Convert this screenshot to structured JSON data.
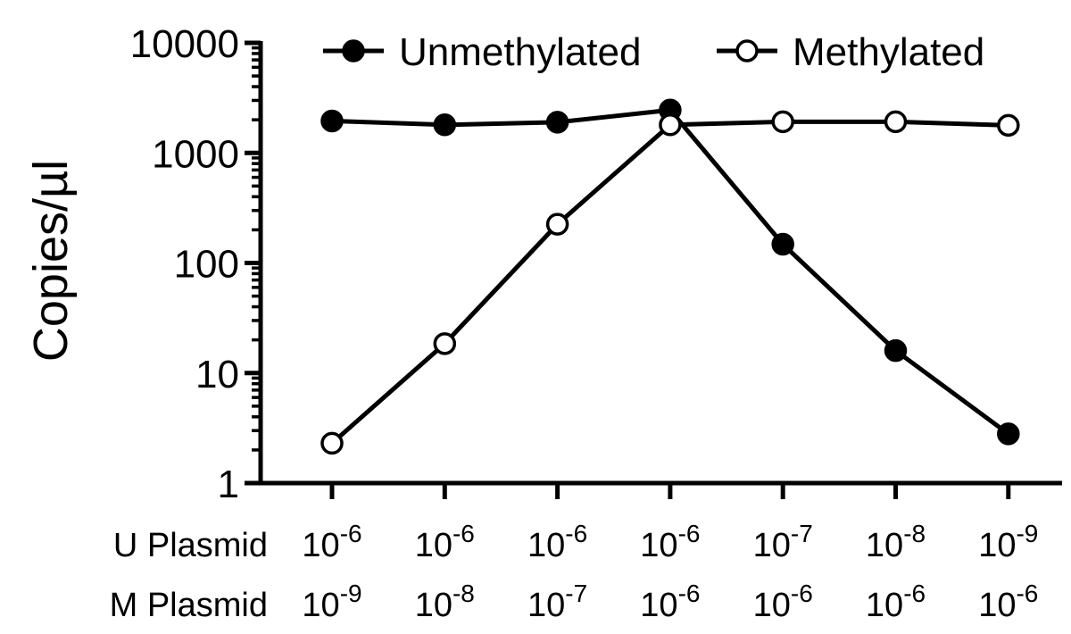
{
  "chart_data": {
    "type": "line",
    "ylabel": "Copies/µl",
    "y_scale": "log",
    "ylim": [
      1,
      10000
    ],
    "y_ticks": [
      "1",
      "10",
      "100",
      "1000",
      "10000"
    ],
    "legend_position": "top",
    "row_labels": [
      "U Plasmid",
      "M Plasmid"
    ],
    "categories": [
      {
        "u_mant": "10",
        "u_exp": "-6",
        "m_mant": "10",
        "m_exp": "-9"
      },
      {
        "u_mant": "10",
        "u_exp": "-6",
        "m_mant": "10",
        "m_exp": "-8"
      },
      {
        "u_mant": "10",
        "u_exp": "-6",
        "m_mant": "10",
        "m_exp": "-7"
      },
      {
        "u_mant": "10",
        "u_exp": "-6",
        "m_mant": "10",
        "m_exp": "-6"
      },
      {
        "u_mant": "10",
        "u_exp": "-7",
        "m_mant": "10",
        "m_exp": "-6"
      },
      {
        "u_mant": "10",
        "u_exp": "-8",
        "m_mant": "10",
        "m_exp": "-6"
      },
      {
        "u_mant": "10",
        "u_exp": "-9",
        "m_mant": "10",
        "m_exp": "-6"
      }
    ],
    "series": [
      {
        "name": "Unmethylated",
        "marker": "filled-circle",
        "values": [
          1950,
          1800,
          1900,
          2450,
          148,
          16,
          2.8
        ]
      },
      {
        "name": "Methylated",
        "marker": "open-circle",
        "values": [
          2.3,
          18.5,
          225,
          1800,
          1920,
          1920,
          1780
        ]
      }
    ]
  }
}
